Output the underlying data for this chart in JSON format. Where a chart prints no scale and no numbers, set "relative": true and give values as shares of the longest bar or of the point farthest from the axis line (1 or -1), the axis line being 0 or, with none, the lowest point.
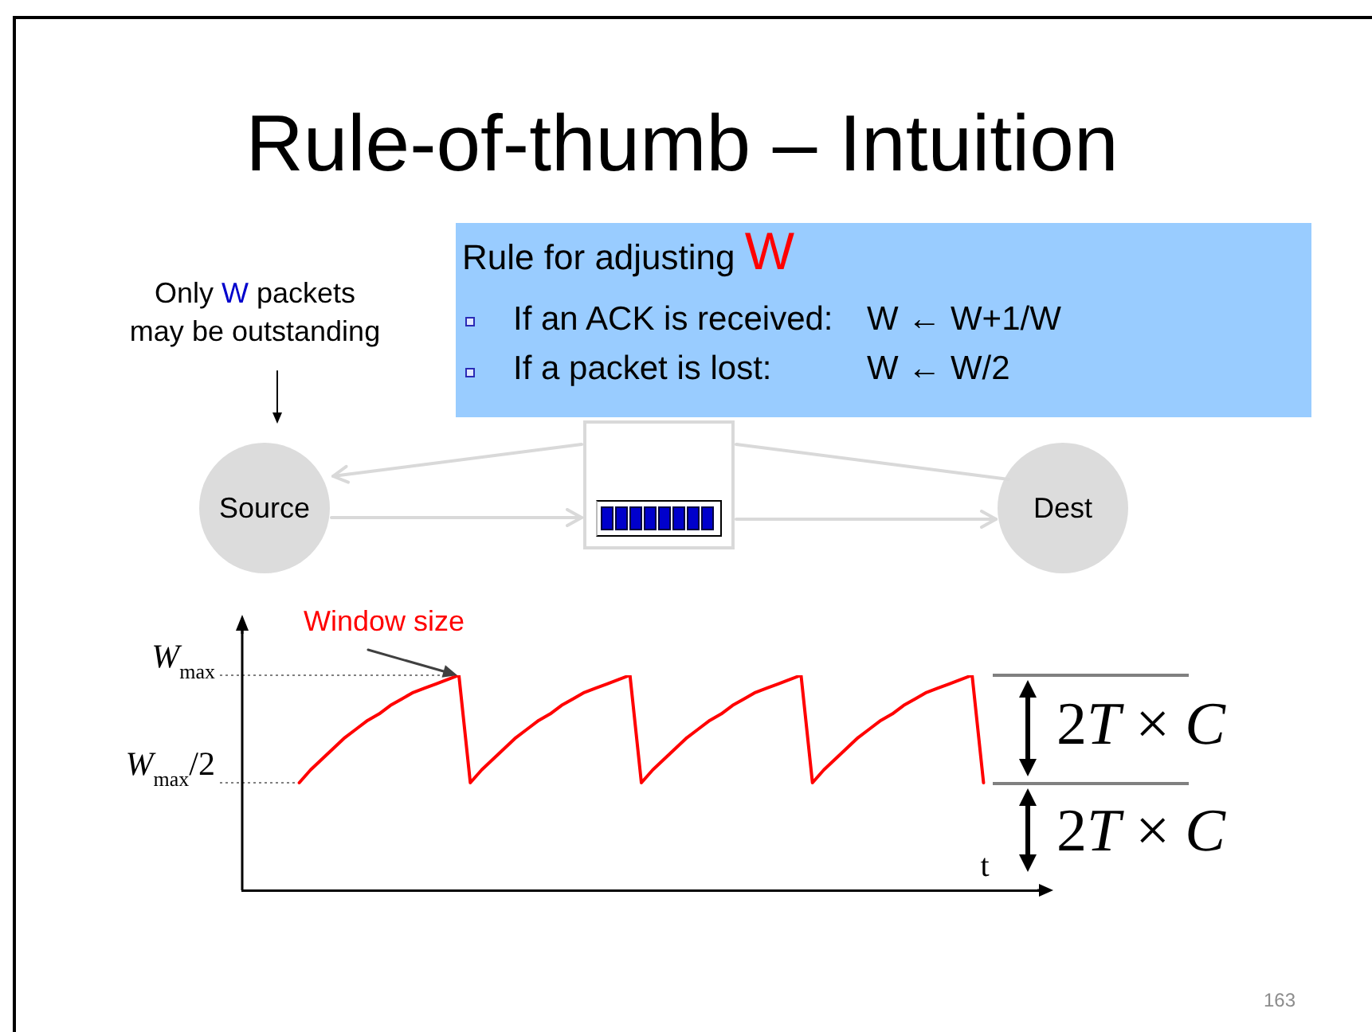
{
  "chart_data": {
    "type": "line",
    "title": "Rule-of-thumb – Intuition",
    "xlabel": "t",
    "categories": [
      null,
      null,
      null,
      null,
      null,
      null,
      null,
      null,
      null,
      null,
      null,
      null,
      null,
      null,
      null,
      null,
      null,
      null,
      null,
      null,
      null,
      null,
      null,
      null,
      null,
      null,
      null,
      null,
      null,
      null,
      null,
      null,
      null,
      null,
      null,
      null,
      null,
      null,
      null,
      null,
      null,
      null,
      null,
      null,
      null,
      null,
      null,
      null,
      null,
      null,
      null,
      null,
      null,
      null,
      null,
      null,
      null,
      null,
      null,
      null,
      null,
      null,
      null,
      null,
      null,
      null,
      null,
      null,
      null,
      null,
      null
    ],
    "values": [
      null,
      null,
      null,
      null,
      null,
      0.5,
      0.56,
      0.61,
      0.66,
      0.71,
      0.75,
      0.79,
      0.82,
      0.86,
      0.89,
      0.92,
      0.94,
      0.96,
      0.98,
      1,
      0.5,
      0.56,
      0.61,
      0.66,
      0.71,
      0.75,
      0.79,
      0.82,
      0.86,
      0.89,
      0.92,
      0.94,
      0.96,
      0.98,
      1,
      0.5,
      0.56,
      0.61,
      0.66,
      0.71,
      0.75,
      0.79,
      0.82,
      0.86,
      0.89,
      0.92,
      0.94,
      0.96,
      0.98,
      1,
      0.5,
      0.56,
      0.61,
      0.66,
      0.71,
      0.75,
      0.79,
      0.82,
      0.86,
      0.89,
      0.92,
      0.94,
      0.96,
      0.98,
      1,
      0.5,
      null,
      null,
      null,
      null,
      null
    ],
    "color": "#ff0000",
    "relative": true,
    "tick_labels": false,
    "ref_lines": [
      {
        "axis": "y",
        "value": 1,
        "label": "W$_{max}$",
        "color": "#808080",
        "line_style": "dotted"
      },
      {
        "axis": "y",
        "value": 0.5,
        "label": "W$_{max}$/2",
        "color": "#808080",
        "line_style": "dotted"
      }
    ],
    "annotations": [
      "Rule for adjusting W",
      "If an ACK is received:",
      "W ← W+1/W",
      "If a packet is lost:",
      "W ← W/2",
      "Only W packets\nmay be outstanding",
      "Source",
      "Dest",
      "Window size",
      "2T × C",
      "2T × C",
      "163"
    ]
  }
}
